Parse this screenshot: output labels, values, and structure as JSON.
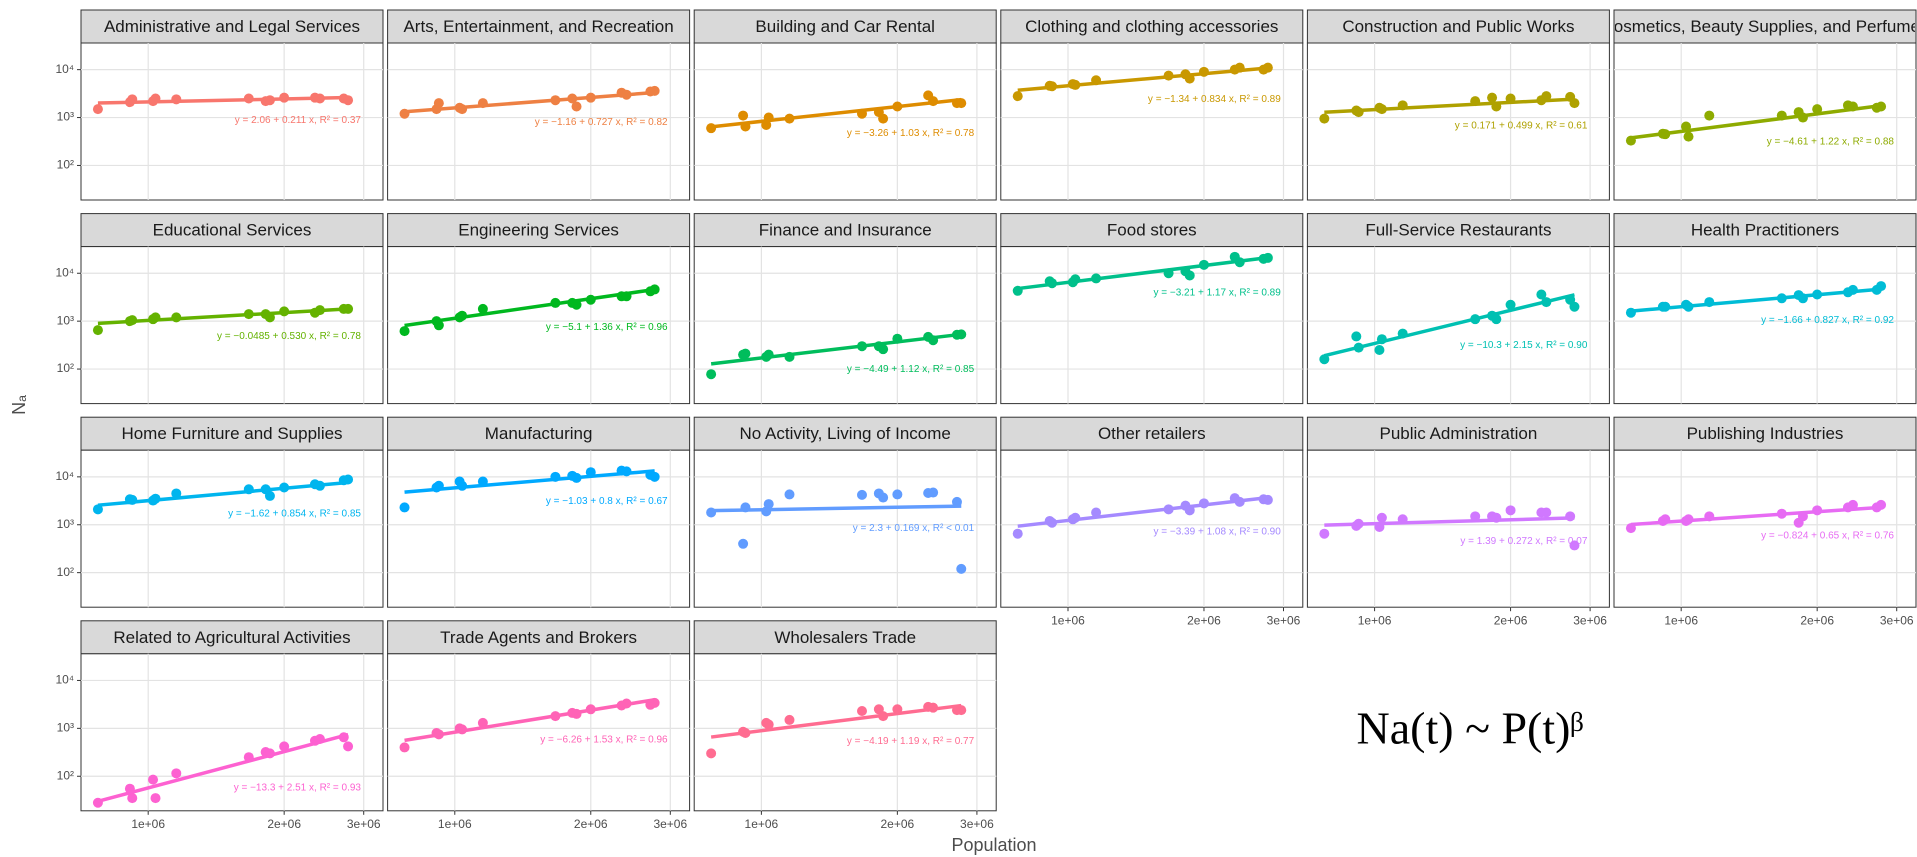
{
  "chart_data": {
    "type": "scatter",
    "xlabel": "Population",
    "ylabel": "Nₐ",
    "annotation": "Na(t) ~ P(t)ᵝ",
    "log_x": true,
    "log_y": true,
    "grid": true,
    "xlim": [
      710000,
      3310000
    ],
    "ylim": [
      19,
      36000
    ],
    "xticks": [
      {
        "value": 1000000,
        "label": "1e+06"
      },
      {
        "value": 2000000,
        "label": "2e+06"
      },
      {
        "value": 3000000,
        "label": "3e+06"
      }
    ],
    "yticks": [
      {
        "value": 100,
        "label": "10²"
      },
      {
        "value": 1000,
        "label": "10³"
      },
      {
        "value": 10000,
        "label": "10⁴"
      }
    ],
    "panels": [
      {
        "title": "Administrative and Legal Services",
        "color": "#F8766D",
        "equation": "y = 2.06 + 0.211 x, R² = 0.37",
        "x": [
          774000,
          911000,
          922000,
          1025000,
          1038000,
          1154000,
          1670000,
          1820000,
          1860000,
          2000000,
          2340000,
          2400000,
          2710000,
          2770000
        ],
        "values": [
          1500,
          2100,
          2400,
          2200,
          2500,
          2400,
          2500,
          2200,
          2300,
          2600,
          2600,
          2500,
          2500,
          2300
        ],
        "fit_x": [
          774000,
          2770000
        ],
        "fit_values": [
          2010,
          2620
        ]
      },
      {
        "title": "Arts, Entertainment, and Recreation",
        "color": "#EE8043",
        "equation": "y = −1.16 + 0.727 x, R² = 0.82",
        "x": [
          774000,
          911000,
          922000,
          1025000,
          1038000,
          1154000,
          1670000,
          1820000,
          1860000,
          2000000,
          2340000,
          2400000,
          2710000,
          2770000
        ],
        "values": [
          1200,
          1500,
          2000,
          1600,
          1500,
          2000,
          2300,
          2500,
          1700,
          2600,
          3300,
          3000,
          3500,
          3600
        ],
        "fit_x": [
          774000,
          2770000
        ],
        "fit_values": [
          1320,
          3330
        ]
      },
      {
        "title": "Building and Car Rental",
        "color": "#DE8C00",
        "equation": "y = −3.26 + 1.03 x, R² = 0.78",
        "x": [
          774000,
          911000,
          922000,
          1025000,
          1038000,
          1154000,
          1670000,
          1820000,
          1860000,
          2000000,
          2340000,
          2400000,
          2710000,
          2770000
        ],
        "values": [
          600,
          1100,
          650,
          700,
          1000,
          950,
          1200,
          1300,
          950,
          1700,
          2900,
          2200,
          2000,
          2000
        ],
        "fit_x": [
          774000,
          2770000
        ],
        "fit_values": [
          640,
          2370
        ]
      },
      {
        "title": "Clothing and clothing accessories",
        "color": "#C99800",
        "equation": "y = −1.34 + 0.834 x, R² = 0.89",
        "x": [
          774000,
          911000,
          922000,
          1025000,
          1038000,
          1154000,
          1670000,
          1820000,
          1860000,
          2000000,
          2340000,
          2400000,
          2710000,
          2770000
        ],
        "values": [
          2800,
          4600,
          4500,
          5000,
          4800,
          6000,
          7500,
          8000,
          6500,
          9000,
          10000,
          11000,
          10000,
          11000
        ],
        "fit_x": [
          774000,
          2770000
        ],
        "fit_values": [
          3720,
          10800
        ]
      },
      {
        "title": "Construction and Public Works",
        "color": "#AFA100",
        "equation": "y = 0.171 + 0.499 x, R² = 0.61",
        "x": [
          774000,
          911000,
          922000,
          1025000,
          1038000,
          1154000,
          1670000,
          1820000,
          1860000,
          2000000,
          2340000,
          2400000,
          2710000,
          2770000
        ],
        "values": [
          950,
          1400,
          1300,
          1600,
          1500,
          1800,
          2200,
          2600,
          1700,
          2500,
          2300,
          2800,
          2700,
          2000
        ],
        "fit_x": [
          774000,
          2770000
        ],
        "fit_values": [
          1290,
          2430
        ]
      },
      {
        "title": "Cosmetics, Beauty Supplies, and Perfumes",
        "color": "#8EAB00",
        "equation": "y = −4.61 + 1.22 x, R² = 0.88",
        "x": [
          774000,
          911000,
          922000,
          1025000,
          1038000,
          1154000,
          1670000,
          1820000,
          1860000,
          2000000,
          2340000,
          2400000,
          2710000,
          2770000
        ],
        "values": [
          330,
          460,
          450,
          650,
          400,
          1100,
          1100,
          1300,
          1000,
          1500,
          1800,
          1700,
          1600,
          1700
        ],
        "fit_x": [
          774000,
          2770000
        ],
        "fit_values": [
          376,
          1770
        ]
      },
      {
        "title": "Educational Services",
        "color": "#64B200",
        "equation": "y = −0.0485 + 0.530 x, R² = 0.78",
        "x": [
          774000,
          911000,
          922000,
          1025000,
          1038000,
          1154000,
          1670000,
          1820000,
          1860000,
          2000000,
          2340000,
          2400000,
          2710000,
          2770000
        ],
        "values": [
          650,
          1000,
          1050,
          1100,
          1200,
          1200,
          1400,
          1400,
          1200,
          1600,
          1500,
          1700,
          1800,
          1800
        ],
        "fit_x": [
          774000,
          2770000
        ],
        "fit_values": [
          900,
          1800
        ]
      },
      {
        "title": "Engineering Services",
        "color": "#00B81F",
        "equation": "y = −5.1 + 1.36 x, R² = 0.96",
        "x": [
          774000,
          911000,
          922000,
          1025000,
          1038000,
          1154000,
          1670000,
          1820000,
          1860000,
          2000000,
          2340000,
          2400000,
          2710000,
          2770000
        ],
        "values": [
          620,
          1000,
          820,
          1200,
          1300,
          1800,
          2400,
          2400,
          2200,
          2800,
          3300,
          3300,
          4200,
          4600
        ],
        "fit_x": [
          774000,
          2770000
        ],
        "fit_values": [
          811,
          4580
        ]
      },
      {
        "title": "Finance and Insurance",
        "color": "#00BD5C",
        "equation": "y = −4.49 + 1.12 x, R² = 0.85",
        "x": [
          774000,
          911000,
          922000,
          1025000,
          1038000,
          1154000,
          1670000,
          1820000,
          1860000,
          2000000,
          2340000,
          2400000,
          2710000,
          2770000
        ],
        "values": [
          78,
          200,
          210,
          180,
          200,
          180,
          300,
          300,
          260,
          430,
          470,
          400,
          520,
          530
        ],
        "fit_x": [
          774000,
          2770000
        ],
        "fit_values": [
          128,
          531
        ]
      },
      {
        "title": "Food stores",
        "color": "#00C08B",
        "equation": "y = −3.21 + 1.17 x, R² = 0.89",
        "x": [
          774000,
          911000,
          922000,
          1025000,
          1038000,
          1154000,
          1670000,
          1820000,
          1860000,
          2000000,
          2340000,
          2400000,
          2710000,
          2770000
        ],
        "values": [
          4300,
          6800,
          6200,
          6500,
          7500,
          7800,
          10000,
          11000,
          9000,
          15000,
          22000,
          17000,
          20000,
          21000
        ],
        "fit_x": [
          774000,
          2770000
        ],
        "fit_values": [
          4790,
          21200
        ]
      },
      {
        "title": "Full-Service Restaurants",
        "color": "#00C0B2",
        "equation": "y = −10.3 + 2.15 x, R² = 0.90",
        "x": [
          774000,
          911000,
          922000,
          1025000,
          1038000,
          1154000,
          1670000,
          1820000,
          1860000,
          2000000,
          2340000,
          2400000,
          2710000,
          2770000
        ],
        "values": [
          160,
          480,
          280,
          250,
          420,
          550,
          1100,
          1300,
          1100,
          2200,
          3600,
          2500,
          2800,
          2000
        ],
        "fit_x": [
          774000,
          2770000
        ],
        "fit_values": [
          190,
          3550
        ]
      },
      {
        "title": "Health Practitioners",
        "color": "#00BCD6",
        "equation": "y = −1.66 + 0.827 x, R² = 0.92",
        "x": [
          774000,
          911000,
          922000,
          1025000,
          1038000,
          1154000,
          1670000,
          1820000,
          1860000,
          2000000,
          2340000,
          2400000,
          2710000,
          2770000
        ],
        "values": [
          1500,
          2000,
          2000,
          2200,
          2000,
          2500,
          3000,
          3500,
          3000,
          3600,
          4000,
          4500,
          4500,
          5400
        ],
        "fit_x": [
          774000,
          2770000
        ],
        "fit_values": [
          1620,
          4660
        ]
      },
      {
        "title": "Home Furniture and Supplies",
        "color": "#00B5EE",
        "equation": "y = −1.62 + 0.854 x, R² = 0.85",
        "x": [
          774000,
          911000,
          922000,
          1025000,
          1038000,
          1154000,
          1670000,
          1820000,
          1860000,
          2000000,
          2340000,
          2400000,
          2710000,
          2770000
        ],
        "values": [
          2100,
          3400,
          3300,
          3200,
          3500,
          4500,
          5500,
          5500,
          4000,
          6000,
          7000,
          6500,
          8500,
          8800
        ],
        "fit_x": [
          774000,
          2770000
        ],
        "fit_values": [
          2560,
          7620
        ]
      },
      {
        "title": "Manufacturing",
        "color": "#00A9FF",
        "equation": "y = −1.03 + 0.8 x, R² = 0.67",
        "x": [
          774000,
          911000,
          922000,
          1025000,
          1038000,
          1154000,
          1670000,
          1820000,
          1860000,
          2000000,
          2340000,
          2400000,
          2710000,
          2770000
        ],
        "values": [
          2300,
          6000,
          6500,
          8000,
          6500,
          8000,
          10000,
          10500,
          9500,
          12500,
          13500,
          13000,
          11000,
          10000
        ],
        "fit_x": [
          774000,
          2770000
        ],
        "fit_values": [
          4800,
          13300
        ]
      },
      {
        "title": "No Activity, Living of Income",
        "color": "#619CFF",
        "equation": "y = 2.3 + 0.169 x, R² < 0.01",
        "x": [
          774000,
          911000,
          922000,
          1025000,
          1038000,
          1154000,
          1670000,
          1820000,
          1860000,
          2000000,
          2340000,
          2400000,
          2710000,
          2770000
        ],
        "values": [
          1800,
          400,
          2300,
          1900,
          2700,
          4300,
          4200,
          4500,
          3700,
          4300,
          4600,
          4700,
          3000,
          120
        ],
        "fit_x": [
          774000,
          2770000
        ],
        "fit_values": [
          1970,
          2450
        ]
      },
      {
        "title": "Other retailers",
        "color": "#A58AFF",
        "equation": "y = −3.39 + 1.08 x, R² = 0.90",
        "x": [
          774000,
          911000,
          922000,
          1025000,
          1038000,
          1154000,
          1670000,
          1820000,
          1860000,
          2000000,
          2340000,
          2400000,
          2710000,
          2770000
        ],
        "values": [
          650,
          1200,
          1100,
          1300,
          1400,
          1800,
          2100,
          2500,
          2000,
          2800,
          3600,
          3000,
          3400,
          3300
        ],
        "fit_x": [
          774000,
          2770000
        ],
        "fit_values": [
          933,
          3690
        ]
      },
      {
        "title": "Public Administration",
        "color": "#D078FF",
        "equation": "y = 1.39 + 0.272 x, R² = 0.07",
        "x": [
          774000,
          911000,
          922000,
          1025000,
          1038000,
          1154000,
          1670000,
          1820000,
          1860000,
          2000000,
          2340000,
          2400000,
          2710000,
          2770000
        ],
        "values": [
          650,
          950,
          1050,
          900,
          1400,
          1300,
          1500,
          1500,
          1400,
          2000,
          1800,
          1800,
          1500,
          370
        ],
        "fit_x": [
          774000,
          2770000
        ],
        "fit_values": [
          982,
          1390
        ]
      },
      {
        "title": "Publishing Industries",
        "color": "#E76BF3",
        "equation": "y = −0.824 + 0.65 x, R² = 0.76",
        "x": [
          774000,
          911000,
          922000,
          1025000,
          1038000,
          1154000,
          1670000,
          1820000,
          1860000,
          2000000,
          2340000,
          2400000,
          2710000,
          2770000
        ],
        "values": [
          850,
          1200,
          1300,
          1200,
          1300,
          1500,
          1700,
          1100,
          1500,
          2000,
          2300,
          2600,
          2300,
          2600
        ],
        "fit_x": [
          774000,
          2770000
        ],
        "fit_values": [
          1010,
          2310
        ]
      },
      {
        "title": "Related to Agricultural Activities",
        "color": "#FD61D1",
        "equation": "y = −13.3 + 2.51 x, R² = 0.93",
        "x": [
          774000,
          911000,
          922000,
          1025000,
          1038000,
          1154000,
          1670000,
          1820000,
          1860000,
          2000000,
          2340000,
          2400000,
          2710000,
          2770000
        ],
        "values": [
          28,
          55,
          35,
          85,
          35,
          115,
          250,
          320,
          300,
          420,
          550,
          600,
          650,
          420
        ],
        "fit_x": [
          774000,
          2770000
        ],
        "fit_values": [
          30,
          740
        ]
      },
      {
        "title": "Trade Agents and Brokers",
        "color": "#FF63B6",
        "equation": "y = −6.26 + 1.53 x, R² = 0.96",
        "x": [
          774000,
          911000,
          922000,
          1025000,
          1038000,
          1154000,
          1670000,
          1820000,
          1860000,
          2000000,
          2340000,
          2400000,
          2710000,
          2770000
        ],
        "values": [
          400,
          800,
          750,
          1000,
          950,
          1300,
          1800,
          2100,
          2000,
          2500,
          3000,
          3300,
          3100,
          3400
        ],
        "fit_x": [
          774000,
          2770000
        ],
        "fit_values": [
          562,
          3950
        ]
      },
      {
        "title": "Wholesalers Trade",
        "color": "#FF6C91",
        "equation": "y = −4.19 + 1.19 x, R² = 0.77",
        "x": [
          774000,
          911000,
          922000,
          1025000,
          1038000,
          1154000,
          1670000,
          1820000,
          1860000,
          2000000,
          2340000,
          2400000,
          2710000,
          2770000
        ],
        "values": [
          300,
          850,
          800,
          1300,
          1200,
          1500,
          2300,
          2500,
          1800,
          2500,
          2800,
          2700,
          2400,
          2400
        ],
        "fit_x": [
          774000,
          2770000
        ],
        "fit_values": [
          658,
          2990
        ]
      }
    ]
  }
}
